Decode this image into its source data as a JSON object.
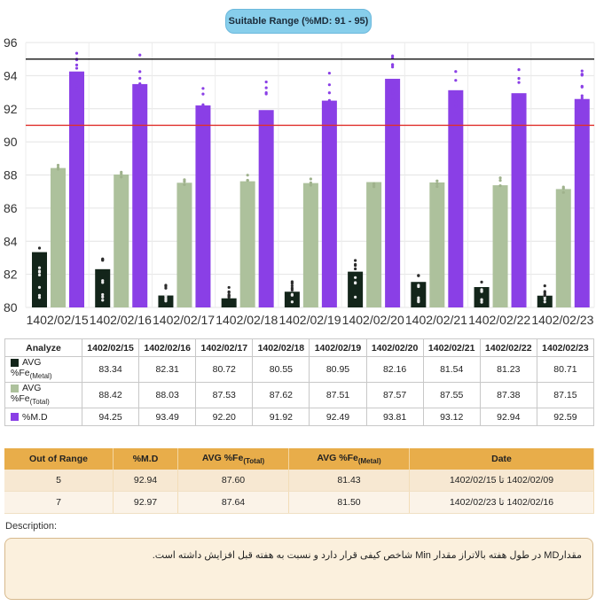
{
  "header": {
    "range_label": "Suitable Range (%MD: 91 - 95)"
  },
  "chart_data": {
    "type": "bar",
    "categories": [
      "1402/02/15",
      "1402/02/16",
      "1402/02/17",
      "1402/02/18",
      "1402/02/19",
      "1402/02/20",
      "1402/02/21",
      "1402/02/22",
      "1402/02/23"
    ],
    "series": [
      {
        "name": "AVG %Fe(Metal)",
        "color": "#13251a",
        "values": [
          83.34,
          82.31,
          80.72,
          80.55,
          80.95,
          82.16,
          81.54,
          81.23,
          80.71
        ]
      },
      {
        "name": "AVG %Fe(Total)",
        "color": "#adc19c",
        "values": [
          88.42,
          88.03,
          87.53,
          87.62,
          87.51,
          87.57,
          87.55,
          87.38,
          87.15
        ]
      },
      {
        "name": "%M.D",
        "color": "#8a3fe6",
        "values": [
          94.25,
          93.49,
          92.2,
          91.92,
          92.49,
          93.81,
          93.12,
          92.94,
          92.59
        ]
      }
    ],
    "ylim": [
      80,
      96
    ],
    "yticks": [
      80,
      82,
      84,
      86,
      88,
      90,
      92,
      94,
      96
    ],
    "reference_lines": [
      {
        "value": 95,
        "color": "#111111"
      },
      {
        "value": 91,
        "color": "#e0302b"
      }
    ],
    "grid": true,
    "legend": "none"
  },
  "stats_table": {
    "header": "Analyze",
    "rows": [
      {
        "label": "AVG",
        "label2": "%Fe",
        "sub": "(Metal)",
        "color": "#13251a",
        "values": [
          "83.34",
          "82.31",
          "80.72",
          "80.55",
          "80.95",
          "82.16",
          "81.54",
          "81.23",
          "80.71"
        ]
      },
      {
        "label": "AVG",
        "label2": "%Fe",
        "sub": "(Total)",
        "color": "#adc19c",
        "values": [
          "88.42",
          "88.03",
          "87.53",
          "87.62",
          "87.51",
          "87.57",
          "87.55",
          "87.38",
          "87.15"
        ]
      },
      {
        "label": "%M.D",
        "color": "#8a3fe6",
        "values": [
          "94.25",
          "93.49",
          "92.20",
          "91.92",
          "92.49",
          "93.81",
          "93.12",
          "92.94",
          "92.59"
        ]
      }
    ]
  },
  "out_of_range": {
    "headers": {
      "count": "Out of Range",
      "md": "%M.D",
      "fe_total": "AVG %Fe",
      "fe_total_sub": "(Total)",
      "fe_metal": "AVG %Fe",
      "fe_metal_sub": "(Metal)",
      "date": "Date"
    },
    "rows": [
      {
        "count": "5",
        "md": "92.94",
        "fe_total": "87.60",
        "fe_metal": "81.43",
        "date": "1402/02/09 تا 1402/02/15"
      },
      {
        "count": "7",
        "md": "92.97",
        "fe_total": "87.64",
        "fe_metal": "81.50",
        "date": "1402/02/16 تا 1402/02/23"
      }
    ]
  },
  "description": {
    "label": "Description:",
    "text": "مقدارMD در طول هفته بالاتراز مقدار Min شاخص کیفی قرار دارد و نسبت به هفته قبل افزایش داشته است."
  }
}
